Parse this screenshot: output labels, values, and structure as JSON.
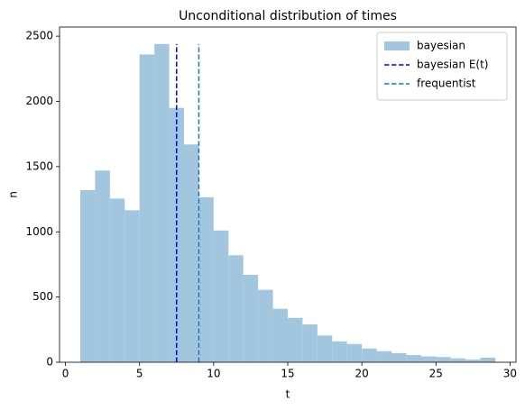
{
  "chart_data": {
    "type": "histogram",
    "title": "Unconditional distribution of times",
    "x_label": "t",
    "y_label": "n",
    "bins": [
      1,
      2,
      3,
      4,
      5,
      6,
      7,
      8,
      9,
      10,
      11,
      12,
      13,
      14,
      15,
      16,
      17,
      18,
      19,
      20,
      21,
      22,
      23,
      24,
      25,
      26,
      27,
      28,
      29
    ],
    "series": [
      {
        "name": "bayesian",
        "color": "#a3c6df",
        "values": [
          1320,
          1470,
          1255,
          1165,
          2360,
          2440,
          1950,
          1670,
          1265,
          1010,
          820,
          670,
          555,
          410,
          340,
          290,
          205,
          160,
          140,
          105,
          85,
          70,
          55,
          45,
          40,
          30,
          20,
          35
        ]
      }
    ],
    "lines": [
      {
        "name": "bayesian E(t)",
        "color": "#0000ff",
        "x": 7.5
      },
      {
        "name": "frequentist",
        "color": "#1f77b4",
        "x": 9
      }
    ],
    "xlim": [
      -0.4,
      30.4
    ],
    "ylim": [
      0,
      2570
    ],
    "xticks": [
      0,
      5,
      10,
      15,
      20,
      25,
      30
    ],
    "yticks": [
      0,
      500,
      1000,
      1500,
      2000,
      2500
    ],
    "legend": "upper right"
  }
}
